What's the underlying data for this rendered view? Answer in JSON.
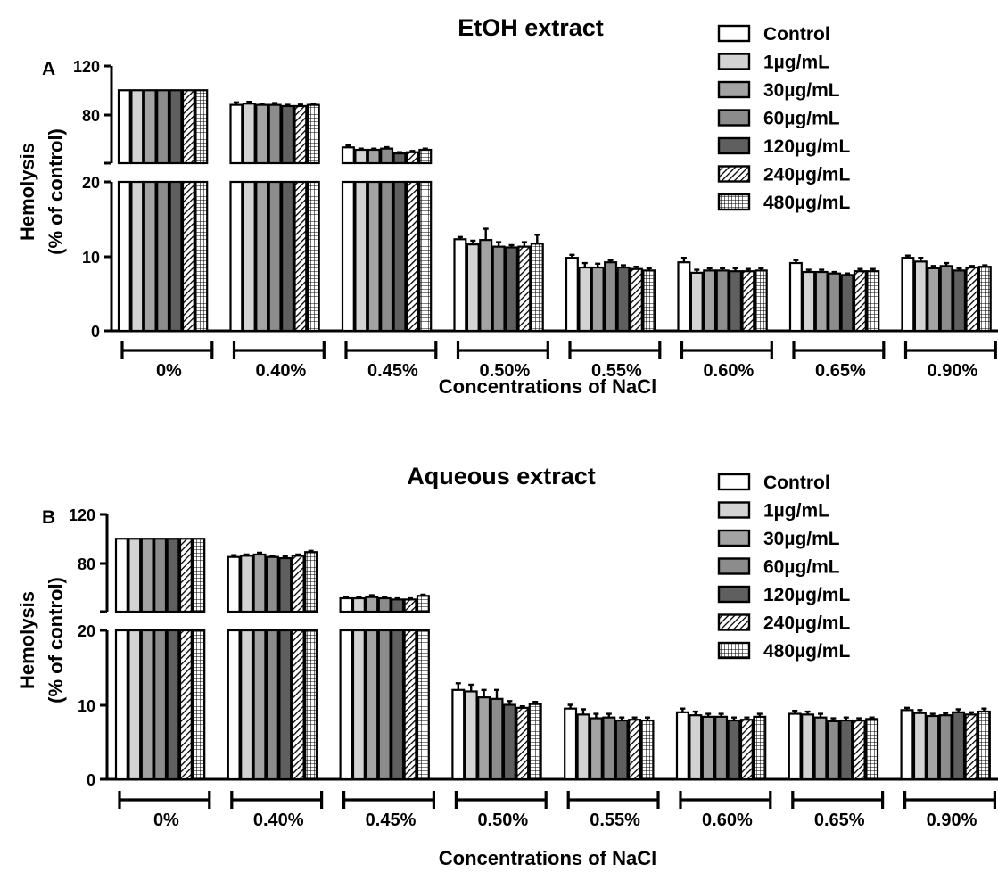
{
  "colors": {
    "outline": "#000000",
    "Control": "#ffffff",
    "1µg/mL": "#d3d3d3",
    "30µg/mL": "#a3a3a3",
    "60µg/mL": "#8c8c8c",
    "120µg/mL": "#5f5f5f",
    "240µg/mL": "hatch",
    "480µg/mL": "grid"
  },
  "chart_data": [
    {
      "type": "bar",
      "panel_label": "A",
      "title": "EtOH extract",
      "xlabel": "Concentrations of NaCl",
      "ylabel_line1": "Hemolysis",
      "ylabel_line2": "(% of control)",
      "categories": [
        "0%",
        "0.40%",
        "0.45%",
        "0.50%",
        "0.55%",
        "0.60%",
        "0.65%",
        "0.90%"
      ],
      "y_broken_axis": true,
      "y_lower_range": [
        0,
        20
      ],
      "y_upper_range": [
        40,
        120
      ],
      "y_ticks_lower": [
        "0",
        "10",
        "20"
      ],
      "y_ticks_upper": [
        "80",
        "120"
      ],
      "legend_position": "top-right",
      "legend": [
        "Control",
        "1µg/mL",
        "30µg/mL",
        "60µg/mL",
        "120µg/mL",
        "240µg/mL",
        "480µg/mL"
      ],
      "series": [
        {
          "name": "Control",
          "values": [
            100,
            88,
            53,
            12.3,
            9.8,
            9.2,
            9.1,
            9.8
          ],
          "errors": [
            0,
            2,
            1.5,
            0.3,
            0.4,
            0.6,
            0.4,
            0.3
          ]
        },
        {
          "name": "1µg/mL",
          "values": [
            100,
            89,
            51,
            11.6,
            8.5,
            7.8,
            7.9,
            9.3
          ],
          "errors": [
            0,
            1.5,
            1,
            0.5,
            0.6,
            0.4,
            0.3,
            0.5
          ]
        },
        {
          "name": "30µg/mL",
          "values": [
            100,
            88,
            51,
            12.2,
            8.5,
            8.1,
            7.9,
            8.4
          ],
          "errors": [
            0,
            1,
            1,
            1.5,
            0.5,
            0.3,
            0.3,
            0.3
          ]
        },
        {
          "name": "60µg/mL",
          "values": [
            100,
            88,
            52,
            11.3,
            9.2,
            8.1,
            7.7,
            8.7
          ],
          "errors": [
            0,
            1.5,
            1.2,
            0.6,
            0.3,
            0.3,
            0.2,
            0.4
          ]
        },
        {
          "name": "120µg/mL",
          "values": [
            100,
            87,
            48,
            11.2,
            8.5,
            8.0,
            7.5,
            8.1
          ],
          "errors": [
            0,
            1,
            1,
            0.3,
            0.3,
            0.4,
            0.2,
            0.3
          ]
        },
        {
          "name": "240µg/mL",
          "values": [
            100,
            87,
            49,
            11.3,
            8.3,
            8.0,
            8.0,
            8.5
          ],
          "errors": [
            0,
            1.2,
            1,
            0.6,
            0.3,
            0.3,
            0.3,
            0.2
          ]
        },
        {
          "name": "480µg/mL",
          "values": [
            100,
            88,
            51,
            11.7,
            8.1,
            8.1,
            8.0,
            8.6
          ],
          "errors": [
            0,
            1,
            1,
            1.2,
            0.3,
            0.3,
            0.3,
            0.2
          ]
        }
      ]
    },
    {
      "type": "bar",
      "panel_label": "B",
      "title": "Aqueous extract",
      "xlabel": "Concentrations of NaCl",
      "ylabel_line1": "Hemolysis",
      "ylabel_line2": "(% of control)",
      "categories": [
        "0%",
        "0.40%",
        "0.45%",
        "0.50%",
        "0.55%",
        "0.60%",
        "0.65%",
        "0.90%"
      ],
      "y_broken_axis": true,
      "y_lower_range": [
        0,
        20
      ],
      "y_upper_range": [
        40,
        120
      ],
      "y_ticks_lower": [
        "0",
        "10",
        "20"
      ],
      "y_ticks_upper": [
        "80",
        "120"
      ],
      "legend_position": "top-right",
      "legend": [
        "Control",
        "1µg/mL",
        "30µg/mL",
        "60µg/mL",
        "120µg/mL",
        "240µg/mL",
        "480µg/mL"
      ],
      "series": [
        {
          "name": "Control",
          "values": [
            100,
            85,
            51,
            12.0,
            9.5,
            9.0,
            8.8,
            9.3
          ],
          "errors": [
            0,
            1.5,
            1,
            0.9,
            0.5,
            0.5,
            0.4,
            0.3
          ]
        },
        {
          "name": "1µg/mL",
          "values": [
            100,
            86,
            51,
            11.8,
            8.7,
            8.6,
            8.7,
            8.9
          ],
          "errors": [
            0,
            1,
            1,
            0.9,
            0.7,
            0.5,
            0.4,
            0.4
          ]
        },
        {
          "name": "30µg/mL",
          "values": [
            100,
            87,
            52,
            11.0,
            8.2,
            8.4,
            8.3,
            8.5
          ],
          "errors": [
            0,
            1.5,
            1.5,
            1.0,
            0.6,
            0.4,
            0.5,
            0.3
          ]
        },
        {
          "name": "60µg/mL",
          "values": [
            100,
            85,
            51,
            10.8,
            8.3,
            8.4,
            7.8,
            8.6
          ],
          "errors": [
            0,
            1,
            1,
            1.2,
            0.5,
            0.4,
            0.4,
            0.3
          ]
        },
        {
          "name": "120µg/mL",
          "values": [
            100,
            84,
            50,
            10.0,
            7.9,
            7.9,
            7.9,
            9.0
          ],
          "errors": [
            0,
            1.5,
            1,
            0.5,
            0.4,
            0.4,
            0.4,
            0.4
          ]
        },
        {
          "name": "240µg/mL",
          "values": [
            100,
            86,
            50,
            9.6,
            8.0,
            8.0,
            7.9,
            8.7
          ],
          "errors": [
            0,
            1,
            1,
            0.2,
            0.3,
            0.3,
            0.3,
            0.3
          ]
        },
        {
          "name": "480µg/mL",
          "values": [
            100,
            89,
            53,
            10.1,
            7.9,
            8.4,
            8.1,
            9.1
          ],
          "errors": [
            0,
            1,
            1,
            0.3,
            0.4,
            0.4,
            0.2,
            0.4
          ]
        }
      ]
    }
  ]
}
